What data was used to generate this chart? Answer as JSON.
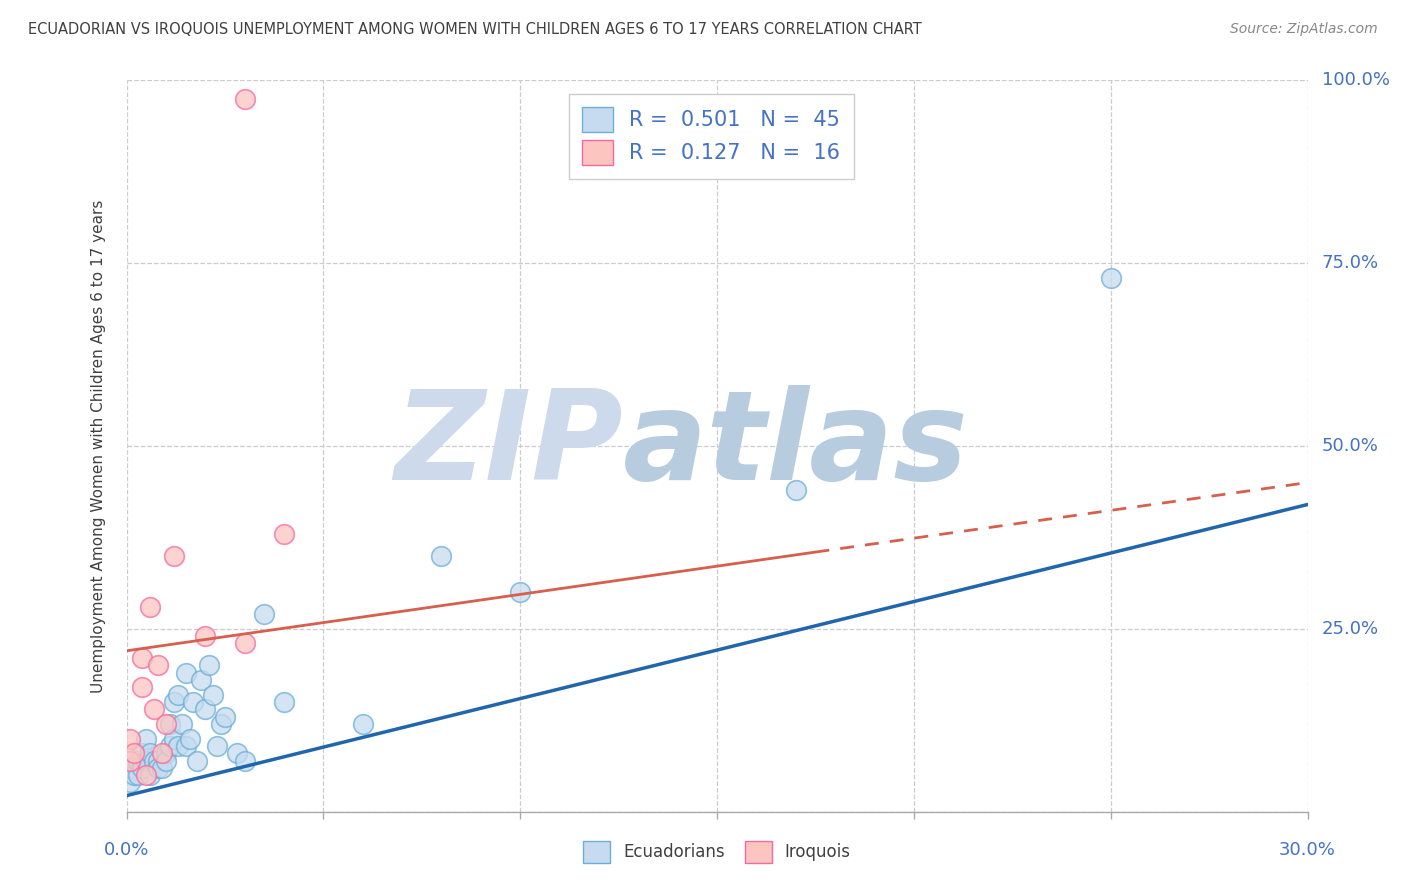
{
  "title": "ECUADORIAN VS IROQUOIS UNEMPLOYMENT AMONG WOMEN WITH CHILDREN AGES 6 TO 17 YEARS CORRELATION CHART",
  "source": "Source: ZipAtlas.com",
  "ylabel": "Unemployment Among Women with Children Ages 6 to 17 years",
  "xlim": [
    0,
    0.3
  ],
  "ylim": [
    0,
    1.0
  ],
  "xticks": [
    0.0,
    0.05,
    0.1,
    0.15,
    0.2,
    0.25,
    0.3
  ],
  "yticks": [
    0.0,
    0.25,
    0.5,
    0.75,
    1.0
  ],
  "legend1_R": "0.501",
  "legend1_N": "45",
  "legend2_R": "0.127",
  "legend2_N": "16",
  "blue_scatter_face": "#c6dbef",
  "blue_scatter_edge": "#6baed6",
  "pink_scatter_face": "#fcc5c0",
  "pink_scatter_edge": "#f768a1",
  "blue_line_color": "#2166ac",
  "pink_line_color": "#d6604d",
  "title_color": "#404040",
  "legend_text_color": "#4472c4",
  "axis_label_color": "#4472c4",
  "watermark_zip_color": "#c8d8ee",
  "watermark_atlas_color": "#b8c8de",
  "background_color": "#ffffff",
  "grid_color": "#cccccc",
  "ecuadorians_x": [
    0.001,
    0.001,
    0.002,
    0.003,
    0.003,
    0.004,
    0.004,
    0.005,
    0.005,
    0.006,
    0.006,
    0.007,
    0.008,
    0.008,
    0.009,
    0.01,
    0.01,
    0.011,
    0.011,
    0.012,
    0.012,
    0.013,
    0.013,
    0.014,
    0.015,
    0.015,
    0.016,
    0.017,
    0.018,
    0.019,
    0.02,
    0.021,
    0.022,
    0.023,
    0.024,
    0.025,
    0.028,
    0.03,
    0.035,
    0.04,
    0.06,
    0.08,
    0.1,
    0.17,
    0.25
  ],
  "ecuadorians_y": [
    0.04,
    0.06,
    0.05,
    0.05,
    0.07,
    0.06,
    0.08,
    0.07,
    0.1,
    0.05,
    0.08,
    0.07,
    0.07,
    0.06,
    0.06,
    0.08,
    0.07,
    0.09,
    0.12,
    0.1,
    0.15,
    0.09,
    0.16,
    0.12,
    0.09,
    0.19,
    0.1,
    0.15,
    0.07,
    0.18,
    0.14,
    0.2,
    0.16,
    0.09,
    0.12,
    0.13,
    0.08,
    0.07,
    0.27,
    0.15,
    0.12,
    0.35,
    0.3,
    0.44,
    0.73
  ],
  "iroquois_x": [
    0.001,
    0.001,
    0.002,
    0.004,
    0.004,
    0.005,
    0.006,
    0.007,
    0.008,
    0.009,
    0.01,
    0.012,
    0.02,
    0.03,
    0.03,
    0.04
  ],
  "iroquois_y": [
    0.07,
    0.1,
    0.08,
    0.17,
    0.21,
    0.05,
    0.28,
    0.14,
    0.2,
    0.08,
    0.12,
    0.35,
    0.24,
    0.975,
    0.23,
    0.38
  ],
  "blue_trend_x0": 0.0,
  "blue_trend_x1": 0.3,
  "blue_trend_y0": 0.022,
  "blue_trend_y1": 0.42,
  "pink_trend_solid_x0": 0.0,
  "pink_trend_solid_x1": 0.175,
  "pink_trend_y0": 0.22,
  "pink_trend_y1": 0.355,
  "pink_trend_dash_x0": 0.175,
  "pink_trend_dash_x1": 0.3,
  "pink_trend_dash_y0": 0.355,
  "pink_trend_dash_y1": 0.45
}
